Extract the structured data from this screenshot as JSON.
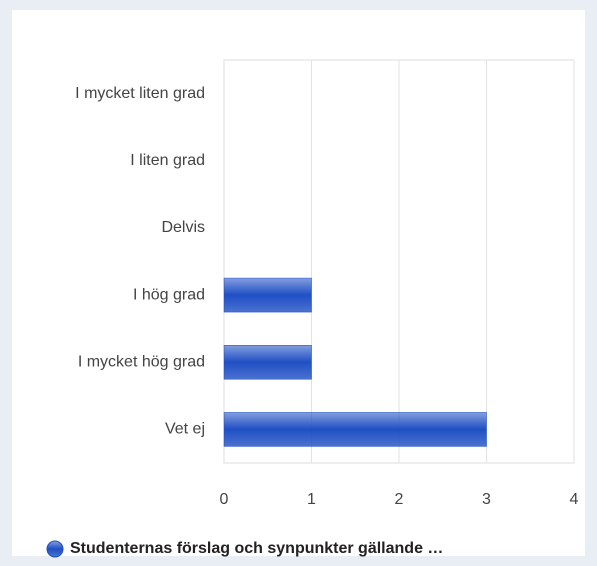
{
  "chart_data": {
    "type": "hbar",
    "categories": [
      "I mycket liten grad",
      "I liten grad",
      "Delvis",
      "I hög grad",
      "I mycket hög grad",
      "Vet ej"
    ],
    "series": [
      {
        "name": "Studenternas förslag och synpunkter gällande …",
        "color": "#1f4fc4",
        "values": [
          0,
          0,
          0,
          1,
          1,
          3
        ]
      }
    ],
    "xlim": [
      0,
      4
    ],
    "xticks": [
      0,
      1,
      2,
      3,
      4
    ],
    "grid": true,
    "legend": "bottom"
  }
}
